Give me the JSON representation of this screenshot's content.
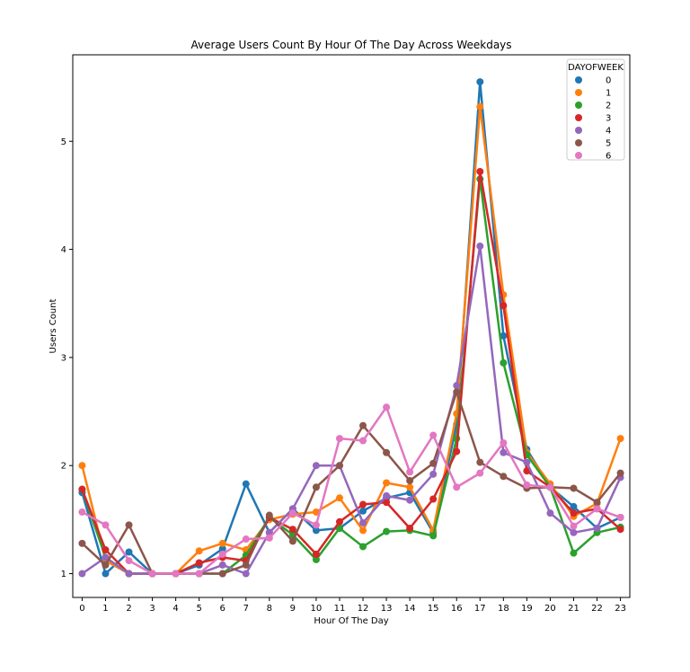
{
  "chart_data": {
    "type": "line",
    "title": "Average Users Count By Hour Of The Day Across Weekdays",
    "xlabel": "Hour Of The Day",
    "ylabel": "Users Count",
    "x": [
      0,
      1,
      2,
      3,
      4,
      5,
      6,
      7,
      8,
      9,
      10,
      11,
      12,
      13,
      14,
      15,
      16,
      17,
      18,
      19,
      20,
      21,
      22,
      23
    ],
    "xlim": [
      -0.4,
      23.4
    ],
    "ylim": [
      0.78,
      5.8
    ],
    "yticks": [
      1,
      2,
      3,
      4,
      5
    ],
    "grid": false,
    "legend": {
      "title": "DAYOFWEEK",
      "placement": "top-right"
    },
    "series": [
      {
        "name": "0",
        "color": "#1f77b4",
        "values": [
          1.75,
          1.0,
          1.2,
          1.0,
          1.0,
          1.08,
          1.23,
          1.83,
          1.38,
          1.6,
          1.4,
          1.42,
          1.58,
          1.7,
          1.75,
          1.38,
          2.38,
          5.55,
          3.2,
          2.15,
          1.8,
          1.62,
          1.42,
          1.52
        ]
      },
      {
        "name": "1",
        "color": "#ff7f0e",
        "values": [
          2.0,
          1.12,
          1.0,
          1.0,
          1.0,
          1.21,
          1.28,
          1.22,
          1.5,
          1.55,
          1.57,
          1.7,
          1.4,
          1.84,
          1.8,
          1.4,
          2.48,
          5.32,
          3.58,
          2.12,
          1.83,
          1.53,
          1.65,
          2.25
        ]
      },
      {
        "name": "2",
        "color": "#2ca02c",
        "values": [
          1.78,
          1.15,
          1.0,
          1.0,
          1.0,
          1.0,
          1.0,
          1.17,
          1.52,
          1.36,
          1.13,
          1.42,
          1.25,
          1.39,
          1.4,
          1.35,
          2.25,
          4.65,
          2.95,
          2.1,
          1.8,
          1.19,
          1.38,
          1.43
        ]
      },
      {
        "name": "3",
        "color": "#d62728",
        "values": [
          1.78,
          1.22,
          1.0,
          1.0,
          1.0,
          1.1,
          1.15,
          1.12,
          1.52,
          1.41,
          1.18,
          1.48,
          1.64,
          1.66,
          1.42,
          1.69,
          2.13,
          4.72,
          3.48,
          1.95,
          1.8,
          1.56,
          1.6,
          1.41
        ]
      },
      {
        "name": "4",
        "color": "#9467bd",
        "values": [
          1.0,
          1.15,
          1.0,
          1.0,
          1.0,
          1.0,
          1.08,
          1.0,
          1.38,
          1.6,
          2.0,
          2.0,
          1.47,
          1.72,
          1.68,
          1.92,
          2.74,
          4.03,
          2.12,
          2.03,
          1.56,
          1.38,
          1.42,
          1.89
        ]
      },
      {
        "name": "5",
        "color": "#8c564b",
        "values": [
          1.28,
          1.08,
          1.45,
          1.0,
          1.0,
          1.0,
          1.0,
          1.08,
          1.54,
          1.3,
          1.8,
          2.0,
          2.37,
          2.12,
          1.86,
          2.02,
          2.68,
          2.03,
          1.9,
          1.79,
          1.8,
          1.79,
          1.66,
          1.93
        ]
      },
      {
        "name": "6",
        "color": "#e377c2",
        "values": [
          1.57,
          1.45,
          1.12,
          1.0,
          1.0,
          1.0,
          1.18,
          1.32,
          1.33,
          1.56,
          1.45,
          2.25,
          2.23,
          2.54,
          1.94,
          2.28,
          1.8,
          1.93,
          2.21,
          1.82,
          1.8,
          1.44,
          1.6,
          1.52
        ]
      }
    ]
  }
}
